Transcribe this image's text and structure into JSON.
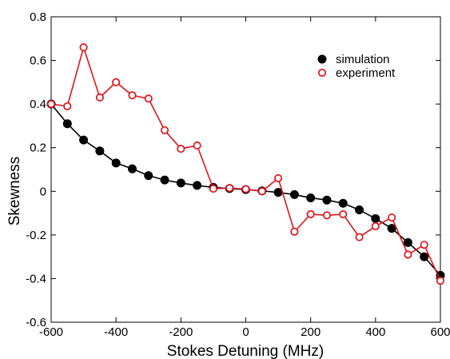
{
  "chart_data": {
    "type": "line",
    "title": "",
    "xlabel": "Stokes Detuning (MHz)",
    "ylabel": "Skewness",
    "xlim": [
      -600,
      600
    ],
    "ylim": [
      -0.6,
      0.8
    ],
    "xticks": [
      -600,
      -400,
      -200,
      0,
      200,
      400,
      600
    ],
    "xtick_labels": [
      "-600",
      "-400",
      "-200",
      "0",
      "200",
      "400",
      "600"
    ],
    "yticks": [
      -0.6,
      -0.4,
      -0.2,
      0,
      0.2,
      0.4,
      0.6,
      0.8
    ],
    "ytick_labels": [
      "-0.6",
      "-0.4",
      "-0.2",
      "0",
      "0.2",
      "0.4",
      "0.6",
      "0.8"
    ],
    "grid": false,
    "legend_position": "top-right",
    "x": [
      -600,
      -550,
      -500,
      -450,
      -400,
      -350,
      -300,
      -250,
      -200,
      -150,
      -100,
      -50,
      0,
      50,
      100,
      150,
      200,
      250,
      300,
      350,
      400,
      450,
      500,
      550,
      600
    ],
    "series": [
      {
        "name": "simulation",
        "color": "#000000",
        "marker": "filled-circle",
        "values": [
          0.4,
          0.31,
          0.235,
          0.185,
          0.13,
          0.103,
          0.072,
          0.052,
          0.038,
          0.027,
          0.018,
          0.013,
          0.008,
          0.002,
          -0.005,
          -0.015,
          -0.03,
          -0.04,
          -0.055,
          -0.085,
          -0.125,
          -0.17,
          -0.235,
          -0.3,
          -0.385
        ]
      },
      {
        "name": "experiment",
        "color": "#e0141b",
        "marker": "open-circle",
        "values": [
          0.4,
          0.39,
          0.66,
          0.43,
          0.5,
          0.44,
          0.425,
          0.28,
          0.195,
          0.21,
          0.012,
          0.015,
          0.01,
          0.0,
          0.06,
          -0.185,
          -0.105,
          -0.11,
          -0.105,
          -0.21,
          -0.16,
          -0.12,
          -0.29,
          -0.245,
          -0.41
        ]
      }
    ]
  }
}
